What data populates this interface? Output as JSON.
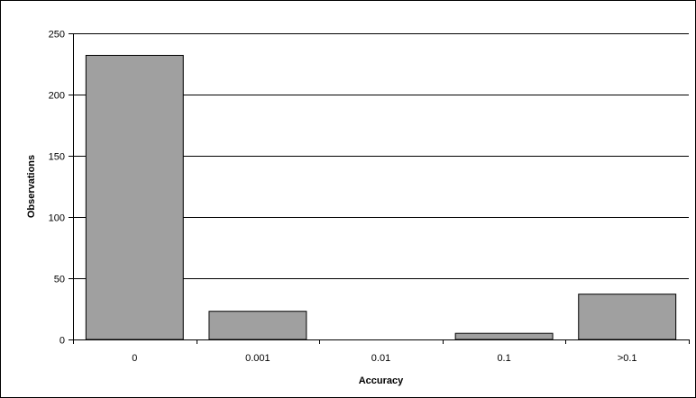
{
  "chart_data": {
    "type": "bar",
    "categories": [
      "0",
      "0.001",
      "0.01",
      "0.1",
      ">0.1"
    ],
    "values": [
      232,
      23,
      0,
      5,
      37
    ],
    "title": "",
    "xlabel": "Accuracy",
    "ylabel": "Observations",
    "ylim": [
      0,
      250
    ],
    "yticks": [
      0,
      50,
      100,
      150,
      200,
      250
    ],
    "yticks_labels": [
      "0",
      "50",
      "100",
      "150",
      "200",
      "250"
    ],
    "grid": true,
    "legend": "none",
    "colors": {
      "bar_fill": "#a0a0a0",
      "bar_stroke": "#000000",
      "gridline": "#000000",
      "frame": "#000000",
      "background": "#ffffff"
    }
  }
}
